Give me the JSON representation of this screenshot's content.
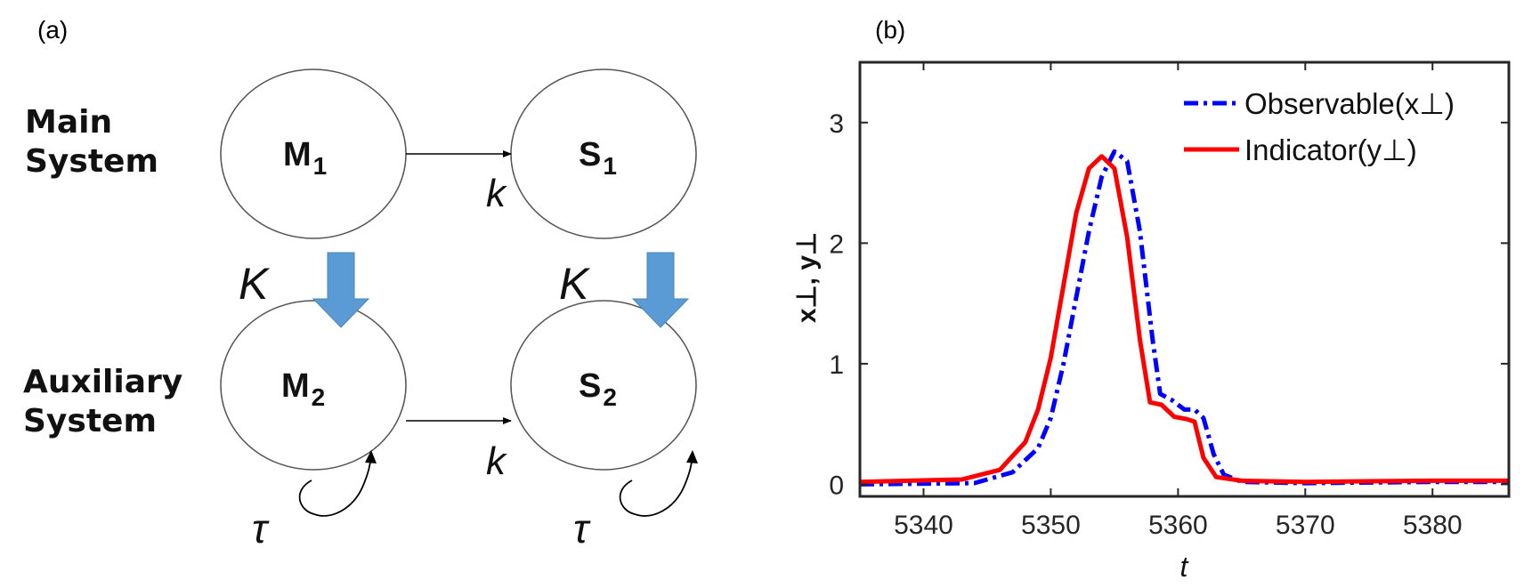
{
  "panel_a": {
    "label": "(a)",
    "main_system_line1": "Main",
    "main_system_line2": "System",
    "aux_system_line1": "Auxiliary",
    "aux_system_line2": "System",
    "nodes": {
      "m1": {
        "letter": "M",
        "sub": "1"
      },
      "s1": {
        "letter": "S",
        "sub": "1"
      },
      "m2": {
        "letter": "M",
        "sub": "2"
      },
      "s2": {
        "letter": "S",
        "sub": "2"
      }
    },
    "coupling_k": "k",
    "coupling_K": "K",
    "delay_tau": "τ",
    "arrow_color": "#5b9bd5"
  },
  "panel_b": {
    "label": "(b)",
    "chart_data": {
      "type": "line",
      "xlabel": "t",
      "ylabel": "x⊥, y⊥",
      "xlim": [
        5335,
        5386
      ],
      "ylim": [
        -0.1,
        3.5
      ],
      "xticks": [
        5340,
        5350,
        5360,
        5370,
        5380
      ],
      "yticks": [
        0,
        1,
        2,
        3
      ],
      "legend_position": "top-right",
      "grid": false,
      "series": [
        {
          "name": "Observable(x⊥)",
          "color": "#0000ff",
          "style": "dash-dot",
          "x": [
            5335,
            5344,
            5347,
            5349,
            5350,
            5351,
            5352,
            5353,
            5354,
            5355,
            5356,
            5357,
            5358,
            5358.6,
            5359.5,
            5360.5,
            5361.3,
            5362,
            5362.8,
            5363.6,
            5365,
            5370,
            5380,
            5386
          ],
          "y": [
            0,
            0.01,
            0.1,
            0.3,
            0.55,
            1.0,
            1.55,
            2.1,
            2.55,
            2.76,
            2.68,
            2.1,
            1.2,
            0.75,
            0.7,
            0.62,
            0.62,
            0.55,
            0.25,
            0.08,
            0.02,
            0.01,
            0.02,
            0.02
          ]
        },
        {
          "name": "Indicator(y⊥)",
          "color": "#ff0000",
          "style": "solid",
          "x": [
            5335,
            5343,
            5346,
            5348,
            5349,
            5350,
            5351,
            5352,
            5353,
            5354,
            5355,
            5356,
            5357,
            5357.8,
            5358.7,
            5359.7,
            5360.7,
            5361.3,
            5362,
            5363,
            5365,
            5370,
            5380,
            5386
          ],
          "y": [
            0.02,
            0.04,
            0.12,
            0.35,
            0.62,
            1.05,
            1.65,
            2.25,
            2.62,
            2.72,
            2.62,
            2.05,
            1.2,
            0.68,
            0.66,
            0.56,
            0.54,
            0.52,
            0.22,
            0.06,
            0.03,
            0.02,
            0.03,
            0.03
          ]
        }
      ]
    }
  }
}
